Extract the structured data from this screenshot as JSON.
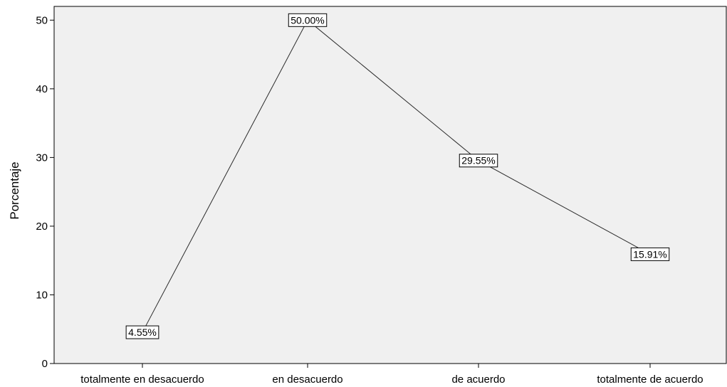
{
  "chart_data": {
    "type": "line",
    "title": "",
    "xlabel": "",
    "ylabel": "Porcentaje",
    "categories": [
      "totalmente en desacuerdo",
      "en desacuerdo",
      "de acuerdo",
      "totalmente de acuerdo"
    ],
    "values": [
      4.55,
      50.0,
      29.55,
      15.91
    ],
    "data_labels": [
      "4.55%",
      "50.00%",
      "29.55%",
      "15.91%"
    ],
    "ylim": [
      0,
      52
    ],
    "yticks": [
      0,
      10,
      20,
      30,
      40,
      50
    ],
    "ytick_labels": [
      "0",
      "10",
      "20",
      "30",
      "40",
      "50"
    ],
    "grid": false,
    "colors": {
      "plot_background": "#f0f0f0",
      "line": "#2a2a2a",
      "axis": "#000000",
      "label_box_fill": "#ffffff",
      "label_box_stroke": "#000000"
    }
  }
}
